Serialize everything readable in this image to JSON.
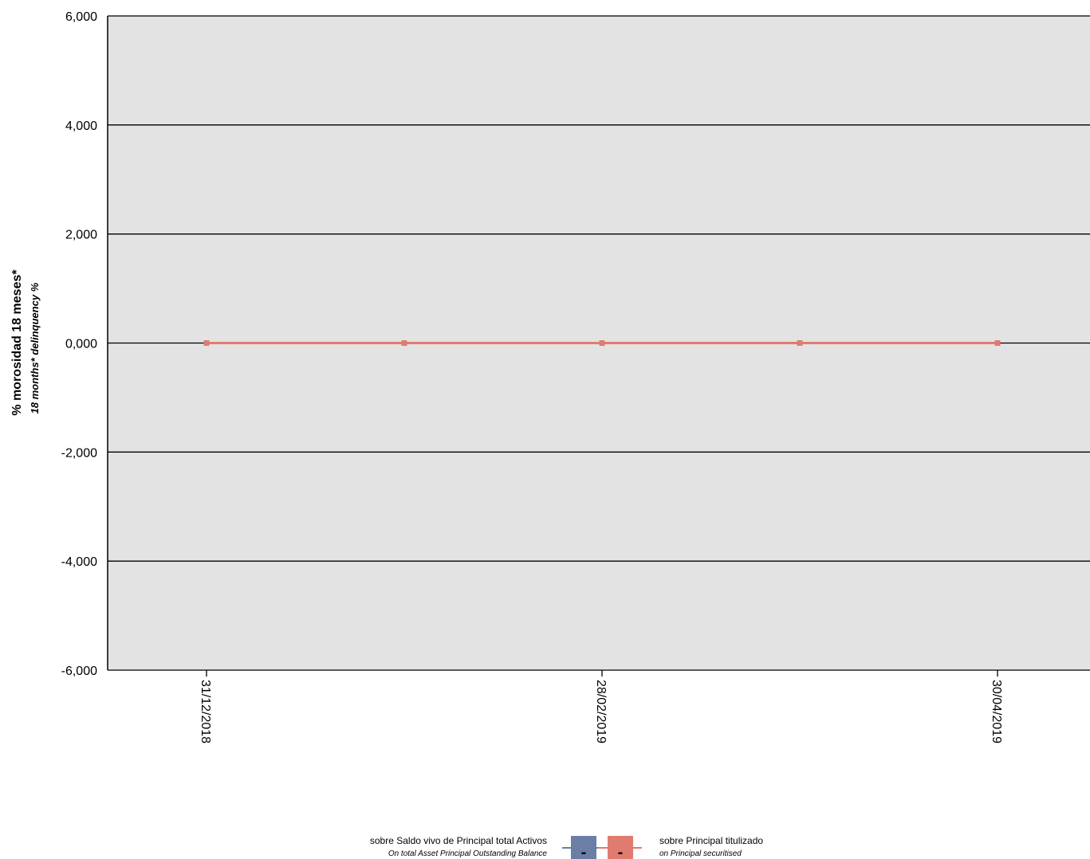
{
  "chart_data": {
    "type": "line",
    "ylabel": "% morosidad 18 meses*",
    "ylabel_sub": "18 months* delinquency %",
    "ylim": [
      -6,
      6
    ],
    "yticks": [
      6,
      4,
      2,
      0,
      -2,
      -4,
      -6
    ],
    "ytick_labels": [
      "6,000",
      "4,000",
      "2,000",
      "0,000",
      "-2,000",
      "-4,000",
      "-6,000"
    ],
    "x": [
      "31/12/2018",
      "31/01/2019",
      "28/02/2019",
      "31/03/2019",
      "30/04/2019"
    ],
    "xtick_labels": [
      "31/12/2018",
      "28/02/2019",
      "30/04/2019"
    ],
    "grid": true,
    "background": "#e3e3e3",
    "series": [
      {
        "name": "sobre Saldo vivo de Principal total Activos",
        "name_sub": "On total Asset Principal Outstanding Balance",
        "color": "#6b7fa6",
        "values": [
          0,
          0,
          0,
          0,
          0
        ],
        "legend_value": "-"
      },
      {
        "name": "sobre Principal titulizado",
        "name_sub": "on Principal securitised",
        "color": "#e07b70",
        "values": [
          0,
          0,
          0,
          0,
          0
        ],
        "legend_value": "-"
      }
    ],
    "legend_position": "bottom-center"
  }
}
